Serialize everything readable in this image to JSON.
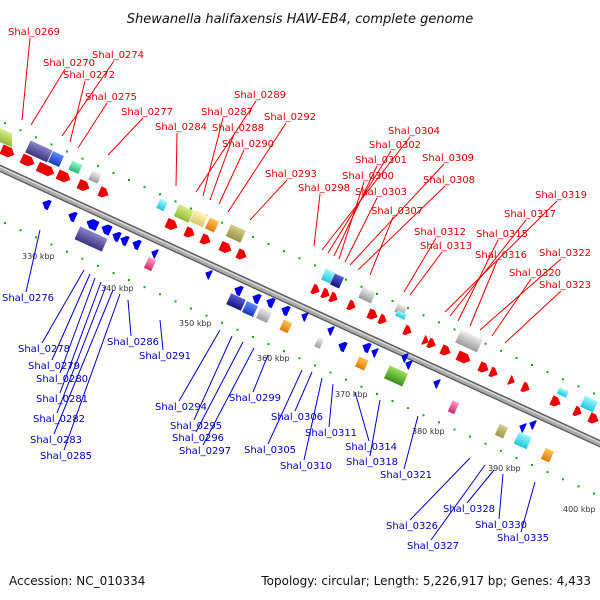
{
  "title": "Shewanella halifaxensis HAW-EB4, complete genome",
  "footer": {
    "accession": "Accession: NC_010334",
    "topology": "Topology: circular; Length: 5,226,917 bp; Genes: 4,433"
  },
  "kbp_ticks": [
    "330 kbp",
    "340 kbp",
    "350 kbp",
    "360 kbp",
    "370 kbp",
    "380 kbp",
    "390 kbp",
    "400 kbp"
  ],
  "top_labels": [
    "Shal_0269",
    "Shal_0270",
    "Shal_0274",
    "Shal_0272",
    "Shal_0275",
    "Shal_0277",
    "Shal_0284",
    "Shal_0289",
    "Shal_0287",
    "Shal_0288",
    "Shal_0292",
    "Shal_0290",
    "Shal_0293",
    "Shal_0298",
    "Shal_0304",
    "Shal_0302",
    "Shal_0301",
    "Shal_0300",
    "Shal_0303",
    "Shal_0309",
    "Shal_0308",
    "Shal_0307",
    "Shal_0312",
    "Shal_0313",
    "Shal_0319",
    "Shal_0317",
    "Shal_0315",
    "Shal_0316",
    "Shal_0322",
    "Shal_0320",
    "Shal_0323"
  ],
  "bottom_labels": [
    "Shal_0276",
    "Shal_0278",
    "Shal_0279",
    "Shal_0280",
    "Shal_0281",
    "Shal_0282",
    "Shal_0283",
    "Shal_0285",
    "Shal_0286",
    "Shal_0291",
    "Shal_0294",
    "Shal_0295",
    "Shal_0296",
    "Shal_0297",
    "Shal_0299",
    "Shal_0305",
    "Shal_0306",
    "Shal_0310",
    "Shal_0311",
    "Shal_0314",
    "Shal_0318",
    "Shal_0321",
    "Shal_0326",
    "Shal_0327",
    "Shal_0328",
    "Shal_0330",
    "Shal_0335"
  ],
  "colors": {
    "forward_gene": "#ee0000",
    "reverse_gene": "#0000ee",
    "backbone": "#888888",
    "tick_dots": "#11aa11"
  }
}
